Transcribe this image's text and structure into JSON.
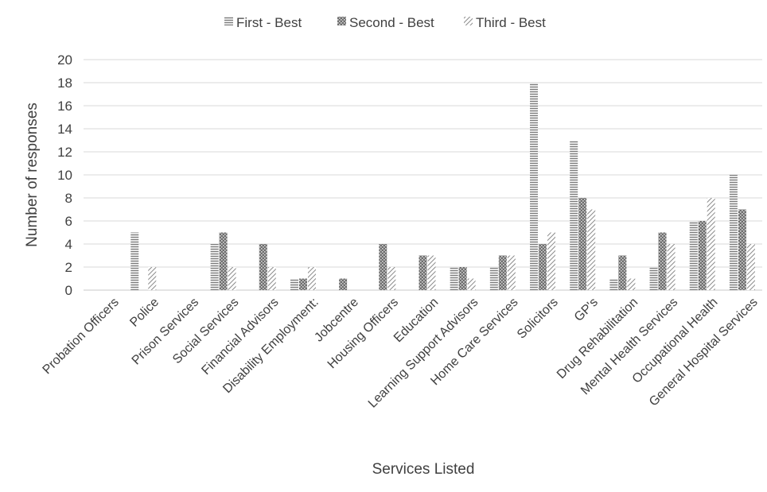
{
  "chart_data": {
    "type": "bar",
    "title": "",
    "xlabel": "Services Listed",
    "ylabel": "Number of responses",
    "ylim": [
      0,
      20
    ],
    "yticks": [
      0,
      2,
      4,
      6,
      8,
      10,
      12,
      14,
      16,
      18,
      20
    ],
    "grid": "horizontal",
    "legend_position": "top",
    "categories": [
      "Probation Officers",
      "Police",
      "Prison Services",
      "Social Services",
      "Financial Advisors",
      "Disability Employment:",
      "Jobcentre",
      "Housing Officers",
      "Education",
      "Learning Support Advisors",
      "Home Care Services",
      "Solicitors",
      "GP's",
      "Drug Rehabilitation",
      "Mental Health Services",
      "Occupational Health",
      "General Hospital Services"
    ],
    "series": [
      {
        "name": "First - Best",
        "pattern": "horizontal-lines",
        "color": "#8c8c8c",
        "values": [
          0,
          5,
          0,
          4,
          0,
          1,
          0,
          0,
          0,
          2,
          2,
          18,
          13,
          1,
          2,
          6,
          10
        ]
      },
      {
        "name": "Second - Best",
        "pattern": "dots",
        "color": "#707070",
        "values": [
          0,
          0,
          0,
          5,
          4,
          1,
          1,
          4,
          3,
          2,
          3,
          4,
          8,
          3,
          5,
          6,
          7
        ]
      },
      {
        "name": "Third - Best",
        "pattern": "diagonal",
        "color": "#8c8c8c",
        "values": [
          0,
          2,
          0,
          2,
          2,
          2,
          0,
          2,
          3,
          1,
          3,
          5,
          7,
          1,
          4,
          8,
          4
        ]
      }
    ]
  }
}
